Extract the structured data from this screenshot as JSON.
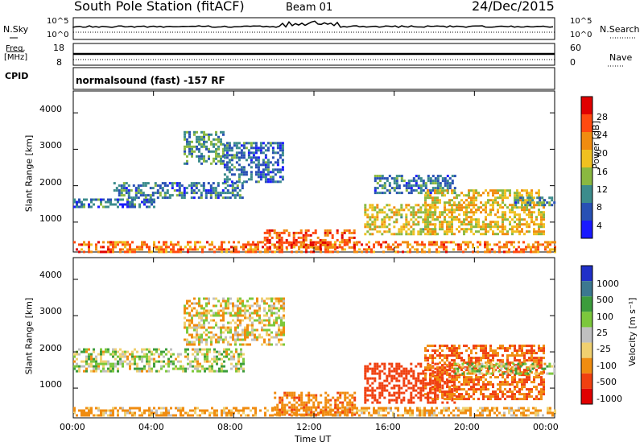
{
  "header": {
    "station": "South Pole Station (fitACF)",
    "beam": "Beam 01",
    "date": "24/Dec/2015",
    "program": "normalsound (fast) -157 RF"
  },
  "strip": {
    "nsky_label": "N.Sky",
    "nsearch_label": "N.Search",
    "freq_label_1": "Freq.",
    "freq_label_2": "[MHz]",
    "cpid_label": "CPID",
    "nave_label": "Nave",
    "noise_ticks": [
      "10^5",
      "10^0"
    ],
    "freq_ticks": [
      "18",
      "8"
    ],
    "nave_ticks": [
      "60",
      "0"
    ]
  },
  "axes": {
    "ylabel": "Slant Range [km]",
    "xlabel": "Time UT",
    "yticks": [
      "4000",
      "3000",
      "2000",
      "1000"
    ],
    "xticks": [
      "00:00",
      "04:00",
      "08:00",
      "12:00",
      "16:00",
      "20:00",
      "00:00"
    ]
  },
  "colorbars": {
    "power": {
      "label": "Power [dB]",
      "ticks": [
        "28",
        "24",
        "20",
        "16",
        "12",
        "8",
        "4"
      ]
    },
    "velocity": {
      "label": "Velocity [m s⁻¹]",
      "ticks": [
        "1000",
        "500",
        "100",
        "25",
        "-25",
        "-100",
        "-500",
        "-1000"
      ]
    }
  },
  "chart_data": [
    {
      "type": "heatmap",
      "title": "Power",
      "xlabel": "Time UT",
      "ylabel": "Slant Range [km]",
      "xlim": [
        0,
        24
      ],
      "ylim": [
        180,
        4600
      ],
      "colorscale_label": "Power [dB]",
      "colorscale_range": [
        0,
        30
      ],
      "colors": [
        "#1a1aff",
        "#2850b4",
        "#3c8c8c",
        "#8ab840",
        "#f0c020",
        "#f08c10",
        "#ff4a10",
        "#e00000"
      ],
      "blobs": [
        {
          "t": [
            0.0,
            24.0
          ],
          "r": [
            200,
            480
          ],
          "p": 22
        },
        {
          "t": [
            0.0,
            4.0
          ],
          "r": [
            1450,
            1650
          ],
          "p": 7
        },
        {
          "t": [
            2.0,
            8.5
          ],
          "r": [
            1700,
            2100
          ],
          "p": 8
        },
        {
          "t": [
            5.5,
            7.5
          ],
          "r": [
            2600,
            3500
          ],
          "p": 10
        },
        {
          "t": [
            7.5,
            10.5
          ],
          "r": [
            2100,
            3200
          ],
          "p": 7
        },
        {
          "t": [
            9.5,
            14.0
          ],
          "r": [
            300,
            800
          ],
          "p": 24
        },
        {
          "t": [
            14.5,
            18.0
          ],
          "r": [
            700,
            1500
          ],
          "p": 16
        },
        {
          "t": [
            15.0,
            19.0
          ],
          "r": [
            1800,
            2300
          ],
          "p": 8
        },
        {
          "t": [
            17.5,
            23.5
          ],
          "r": [
            700,
            1900
          ],
          "p": 17
        },
        {
          "t": [
            22.0,
            24.0
          ],
          "r": [
            1500,
            1700
          ],
          "p": 8
        }
      ]
    },
    {
      "type": "heatmap",
      "title": "Velocity",
      "xlabel": "Time UT",
      "ylabel": "Slant Range [km]",
      "xlim": [
        0,
        24
      ],
      "ylim": [
        180,
        4600
      ],
      "colorscale_label": "Velocity [m s⁻¹]",
      "colorscale_ticks": [
        1000,
        500,
        100,
        25,
        -25,
        -100,
        -500,
        -1000
      ],
      "colors": [
        "#2030c8",
        "#3c7890",
        "#3c9c3c",
        "#7cc83c",
        "#c0c0c0",
        "#f0d070",
        "#f08c10",
        "#f04010",
        "#e00000"
      ],
      "blobs": [
        {
          "t": [
            0.0,
            24.0
          ],
          "r": [
            250,
            480
          ],
          "v": -150
        },
        {
          "t": [
            0.0,
            8.5
          ],
          "r": [
            1450,
            2100
          ],
          "v": 25
        },
        {
          "t": [
            5.5,
            10.5
          ],
          "r": [
            2200,
            3500
          ],
          "v": -60
        },
        {
          "t": [
            10.0,
            14.0
          ],
          "r": [
            300,
            900
          ],
          "v": -400
        },
        {
          "t": [
            14.5,
            19.0
          ],
          "r": [
            600,
            1700
          ],
          "v": -700
        },
        {
          "t": [
            17.5,
            23.5
          ],
          "r": [
            700,
            2200
          ],
          "v": -500
        },
        {
          "t": [
            19.0,
            24.0
          ],
          "r": [
            1400,
            1700
          ],
          "v": 25
        }
      ]
    }
  ]
}
